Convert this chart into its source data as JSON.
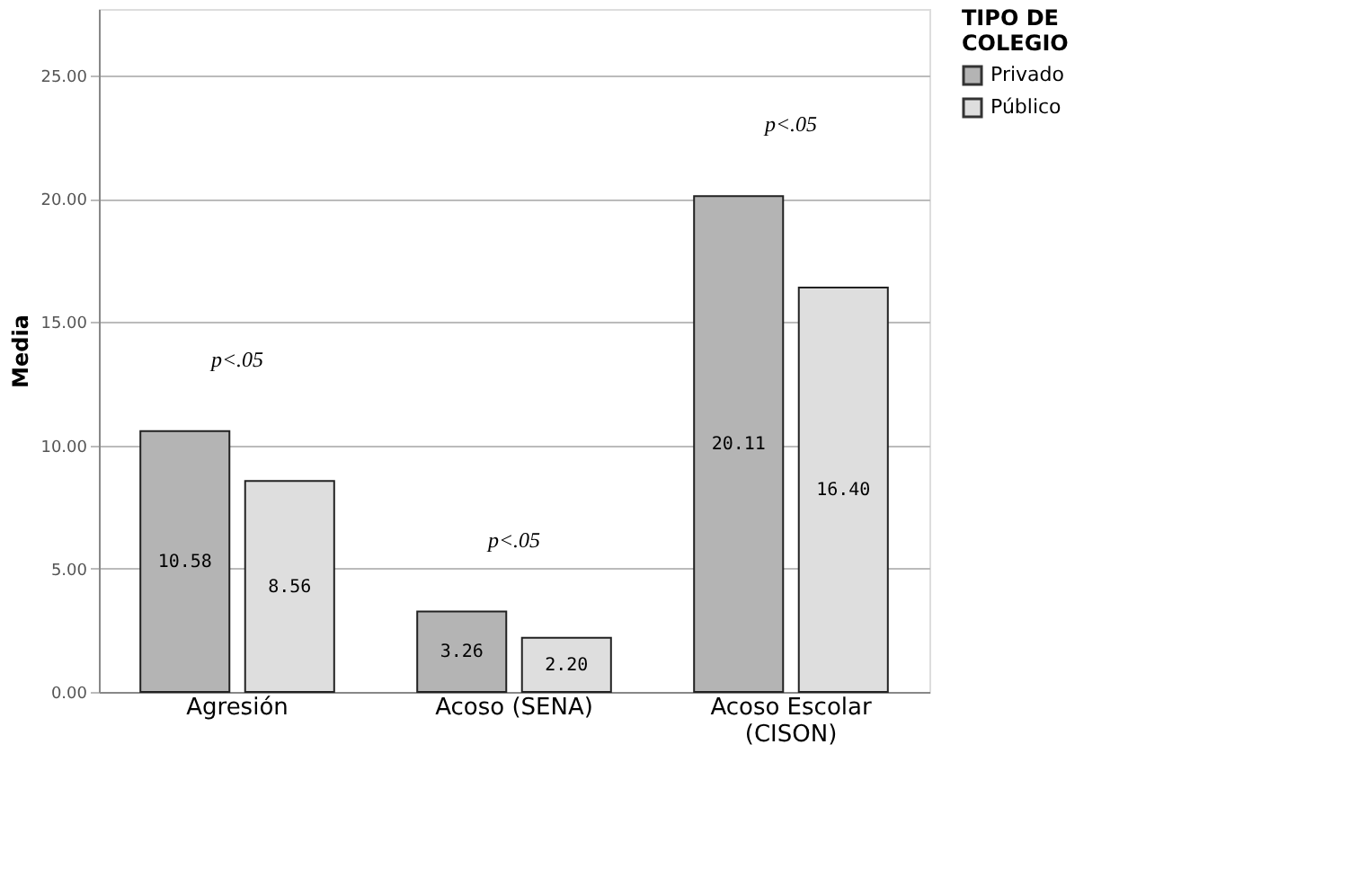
{
  "chart_data": {
    "type": "bar",
    "ylabel": "Media",
    "legend_title": "TIPO DE\nCOLEGIO",
    "categories": [
      "Agresión",
      "Acoso (SENA)",
      "Acoso Escolar\n(CISON)"
    ],
    "series": [
      {
        "name": "Privado",
        "color": "#b4b4b4",
        "values": [
          10.58,
          3.26,
          20.11
        ],
        "value_labels": [
          "10.58",
          "3.26",
          "20.11"
        ]
      },
      {
        "name": "Público",
        "color": "#dedede",
        "values": [
          8.56,
          2.2,
          16.4
        ],
        "value_labels": [
          "8.56",
          "2.20",
          "16.40"
        ]
      }
    ],
    "ylim": [
      0,
      27.7
    ],
    "yticks": [
      {
        "value": 0,
        "label": "0.00"
      },
      {
        "value": 5,
        "label": "5.00"
      },
      {
        "value": 10,
        "label": "10.00"
      },
      {
        "value": 15,
        "label": "15.00"
      },
      {
        "value": 20,
        "label": "20.00"
      },
      {
        "value": 25,
        "label": "25.00"
      }
    ],
    "grid": "y",
    "legend": "top right",
    "annotations": [
      "p<.05",
      "p<.05",
      "p<.05"
    ]
  }
}
